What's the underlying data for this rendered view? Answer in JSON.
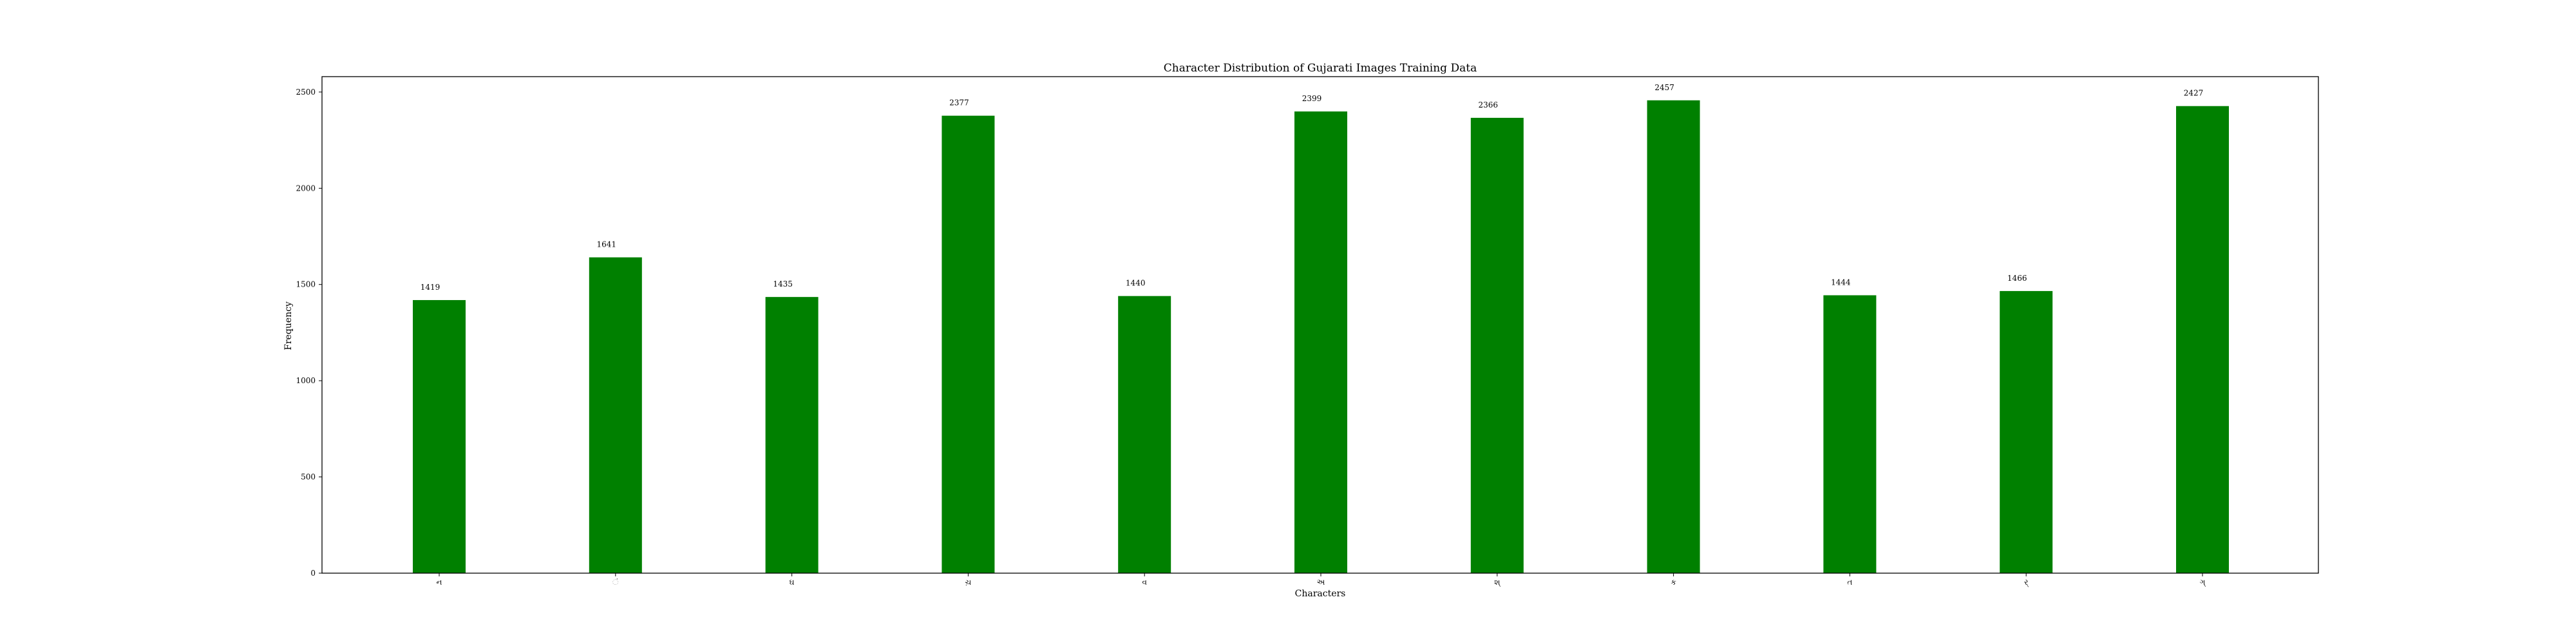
{
  "chart_data": {
    "type": "bar",
    "title": "Character Distribution of Gujarati Images Training Data",
    "xlabel": "Characters",
    "ylabel": "Frequency",
    "categories": [
      "ન",
      "ં",
      "ઘ",
      "ચ઼",
      "વ",
      "અ",
      "શ્",
      "ક",
      "ત",
      "ર્",
      "ગ્"
    ],
    "values": [
      1419,
      1641,
      1435,
      2377,
      1440,
      2399,
      2366,
      2457,
      1444,
      1466,
      2427
    ],
    "ylim": [
      0,
      2580
    ],
    "yticks": [
      0,
      500,
      1000,
      1500,
      2000,
      2500
    ],
    "bar_color": "#008000",
    "grid": false,
    "legend": "none"
  }
}
